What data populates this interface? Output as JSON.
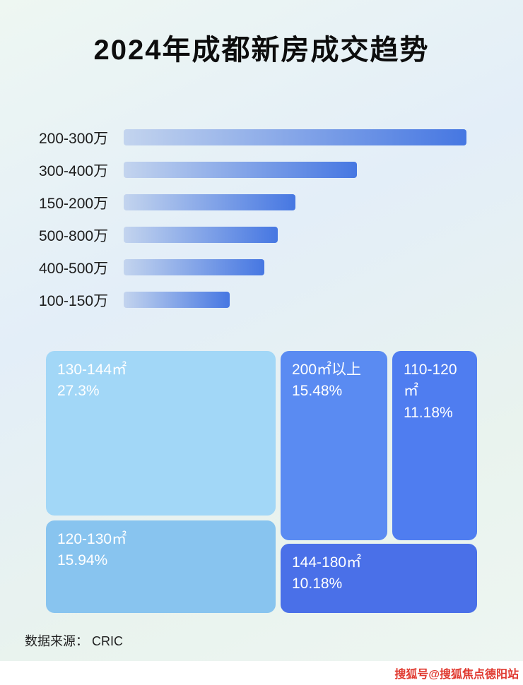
{
  "title": "2024年成都新房成交趋势",
  "chart_data": [
    {
      "type": "bar",
      "orientation": "horizontal",
      "title": "2024年成都新房成交趋势",
      "categories": [
        "200-300万",
        "300-400万",
        "150-200万",
        "500-800万",
        "400-500万",
        "100-150万"
      ],
      "values": [
        100,
        68,
        50,
        45,
        41,
        31
      ],
      "value_unit": "relative-percent-of-longest-bar (no numeric axis labels shown)",
      "colors": {
        "bar_gradient_start": "#c3d4ee",
        "bar_gradient_end": "#4677e2"
      }
    },
    {
      "type": "treemap",
      "items": [
        {
          "label": "130-144㎡",
          "value": "27.3%",
          "color": "#a2d7f7"
        },
        {
          "label": "120-130㎡",
          "value": "15.94%",
          "color": "#88c4ef"
        },
        {
          "label": "200㎡以上",
          "value": "15.48%",
          "color": "#5a8bf2"
        },
        {
          "label": "110-120㎡",
          "value": "11.18%",
          "color": "#4f7df0"
        },
        {
          "label": "144-180㎡",
          "value": "10.18%",
          "color": "#4a70e8"
        }
      ]
    }
  ],
  "footer": {
    "source": "数据来源：  CRIC"
  },
  "watermark": {
    "text": "搜狐号@搜狐焦点德阳站",
    "color": "#e0392f"
  }
}
